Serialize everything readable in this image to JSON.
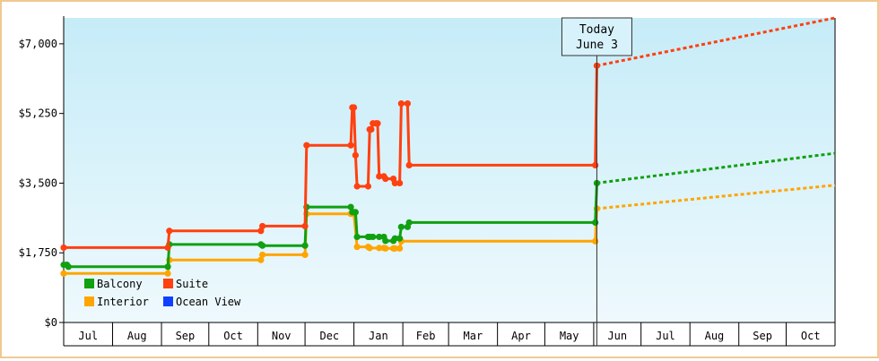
{
  "chart_data": {
    "type": "line",
    "title": "",
    "xlabel": "",
    "ylabel": "",
    "ylim": [
      0,
      7650
    ],
    "yticks": [
      {
        "value": 0,
        "label": "$0"
      },
      {
        "value": 1750,
        "label": "$1,750"
      },
      {
        "value": 3500,
        "label": "$3,500"
      },
      {
        "value": 5250,
        "label": "$5,250"
      },
      {
        "value": 7000,
        "label": "$7,000"
      }
    ],
    "x_months": [
      "Jul",
      "Aug",
      "Sep",
      "Oct",
      "Nov",
      "Dec",
      "Jan",
      "Feb",
      "Mar",
      "Apr",
      "May",
      "Jun",
      "Jul",
      "Aug",
      "Sep",
      "Oct"
    ],
    "xlim": [
      "2023-07-01",
      "2024-11-01"
    ],
    "today": {
      "date": "2024-06-03",
      "label_line1": "Today",
      "label_line2": "June 3"
    },
    "grid": false,
    "legend_position": "bottom-left",
    "series": [
      {
        "name": "Suite",
        "color": "#ff4010",
        "points": [
          [
            "2023-07-01",
            1880
          ],
          [
            "2023-09-05",
            1880
          ],
          [
            "2023-09-06",
            2300
          ],
          [
            "2023-11-03",
            2300
          ],
          [
            "2023-11-04",
            2420
          ],
          [
            "2023-12-01",
            2420
          ],
          [
            "2023-12-02",
            4450
          ],
          [
            "2023-12-30",
            4450
          ],
          [
            "2023-12-31",
            5400
          ],
          [
            "2024-01-01",
            5400
          ],
          [
            "2024-01-02",
            4200
          ],
          [
            "2024-01-03",
            3420
          ],
          [
            "2024-01-10",
            3420
          ],
          [
            "2024-01-11",
            4850
          ],
          [
            "2024-01-12",
            4850
          ],
          [
            "2024-01-13",
            5000
          ],
          [
            "2024-01-15",
            5000
          ],
          [
            "2024-01-16",
            5000
          ],
          [
            "2024-01-17",
            3670
          ],
          [
            "2024-01-20",
            3670
          ],
          [
            "2024-01-21",
            3610
          ],
          [
            "2024-01-26",
            3610
          ],
          [
            "2024-01-27",
            3500
          ],
          [
            "2024-01-30",
            3500
          ],
          [
            "2024-01-31",
            5500
          ],
          [
            "2024-02-04",
            5500
          ],
          [
            "2024-02-05",
            3950
          ],
          [
            "2024-06-02",
            3950
          ],
          [
            "2024-06-03",
            6450
          ]
        ],
        "projection": [
          [
            "2024-06-03",
            6450
          ],
          [
            "2024-11-01",
            7650
          ]
        ]
      },
      {
        "name": "Balcony",
        "color": "#10a010",
        "points": [
          [
            "2023-07-01",
            1450
          ],
          [
            "2023-07-03",
            1450
          ],
          [
            "2023-07-04",
            1400
          ],
          [
            "2023-09-05",
            1400
          ],
          [
            "2023-09-06",
            1960
          ],
          [
            "2023-11-03",
            1960
          ],
          [
            "2023-11-04",
            1930
          ],
          [
            "2023-12-01",
            1930
          ],
          [
            "2023-12-02",
            2900
          ],
          [
            "2023-12-30",
            2900
          ],
          [
            "2023-12-31",
            2770
          ],
          [
            "2024-01-01",
            2770
          ],
          [
            "2024-01-02",
            2770
          ],
          [
            "2024-01-03",
            2150
          ],
          [
            "2024-01-10",
            2150
          ],
          [
            "2024-01-11",
            2150
          ],
          [
            "2024-01-13",
            2150
          ],
          [
            "2024-01-17",
            2150
          ],
          [
            "2024-01-20",
            2150
          ],
          [
            "2024-01-21",
            2050
          ],
          [
            "2024-01-26",
            2050
          ],
          [
            "2024-01-27",
            2110
          ],
          [
            "2024-01-30",
            2110
          ],
          [
            "2024-01-31",
            2400
          ],
          [
            "2024-02-04",
            2400
          ],
          [
            "2024-02-05",
            2510
          ],
          [
            "2024-06-02",
            2510
          ],
          [
            "2024-06-03",
            3500
          ]
        ],
        "projection": [
          [
            "2024-06-03",
            3500
          ],
          [
            "2024-11-01",
            4250
          ]
        ]
      },
      {
        "name": "Interior",
        "color": "#ffa500",
        "points": [
          [
            "2023-07-01",
            1230
          ],
          [
            "2023-09-05",
            1230
          ],
          [
            "2023-09-06",
            1570
          ],
          [
            "2023-11-03",
            1570
          ],
          [
            "2023-11-04",
            1700
          ],
          [
            "2023-12-01",
            1700
          ],
          [
            "2023-12-02",
            2730
          ],
          [
            "2023-12-30",
            2730
          ],
          [
            "2024-01-01",
            2730
          ],
          [
            "2024-01-03",
            1900
          ],
          [
            "2024-01-10",
            1900
          ],
          [
            "2024-01-11",
            1870
          ],
          [
            "2024-01-17",
            1870
          ],
          [
            "2024-01-20",
            1870
          ],
          [
            "2024-01-21",
            1860
          ],
          [
            "2024-01-26",
            1860
          ],
          [
            "2024-01-27",
            1860
          ],
          [
            "2024-01-30",
            1860
          ],
          [
            "2024-01-31",
            2040
          ],
          [
            "2024-06-02",
            2040
          ],
          [
            "2024-06-03",
            2860
          ]
        ],
        "projection": [
          [
            "2024-06-03",
            2860
          ],
          [
            "2024-11-01",
            3450
          ]
        ]
      },
      {
        "name": "Ocean View",
        "color": "#1040ff",
        "points": [],
        "projection": []
      }
    ],
    "legend": [
      {
        "name": "Balcony",
        "color": "#10a010"
      },
      {
        "name": "Suite",
        "color": "#ff4010"
      },
      {
        "name": "Interior",
        "color": "#ffa500"
      },
      {
        "name": "Ocean View",
        "color": "#1040ff"
      }
    ]
  }
}
